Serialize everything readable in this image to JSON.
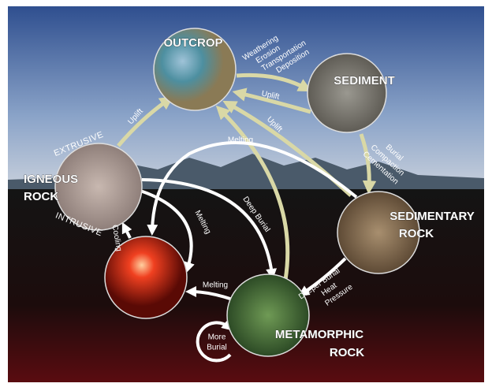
{
  "nodes": [
    {
      "label": [
        "OUTCROP"
      ]
    },
    {
      "label": [
        "SEDIMENT"
      ]
    },
    {
      "label": [
        "SEDIMENTARY",
        "ROCK"
      ]
    },
    {
      "label": [
        "METAMORPHIC",
        "ROCK"
      ]
    },
    {
      "label": [
        "IGNEOUS",
        "ROCK"
      ],
      "sublabels": [
        "EXTRUSIVE",
        "INTRUSIVE"
      ]
    }
  ],
  "edges": [
    {
      "label": [
        "Weathering",
        "Erosion",
        "Transportation",
        "Deposition"
      ]
    },
    {
      "label": [
        "Uplift"
      ]
    },
    {
      "label": [
        "Burial",
        "Compaction",
        "Cementation"
      ]
    },
    {
      "label": [
        "Uplift"
      ]
    },
    {
      "label": [
        "Uplift"
      ]
    },
    {
      "label": [
        "Melting"
      ]
    },
    {
      "label": [
        "Deep Burial"
      ]
    },
    {
      "label": [
        "Melting"
      ]
    },
    {
      "label": [
        "Cooling"
      ]
    },
    {
      "label": [
        "Melting"
      ]
    },
    {
      "label": [
        "Deeper Burial",
        "Heat",
        "Pressure"
      ]
    },
    {
      "label": [
        "More",
        "Burial"
      ]
    }
  ]
}
